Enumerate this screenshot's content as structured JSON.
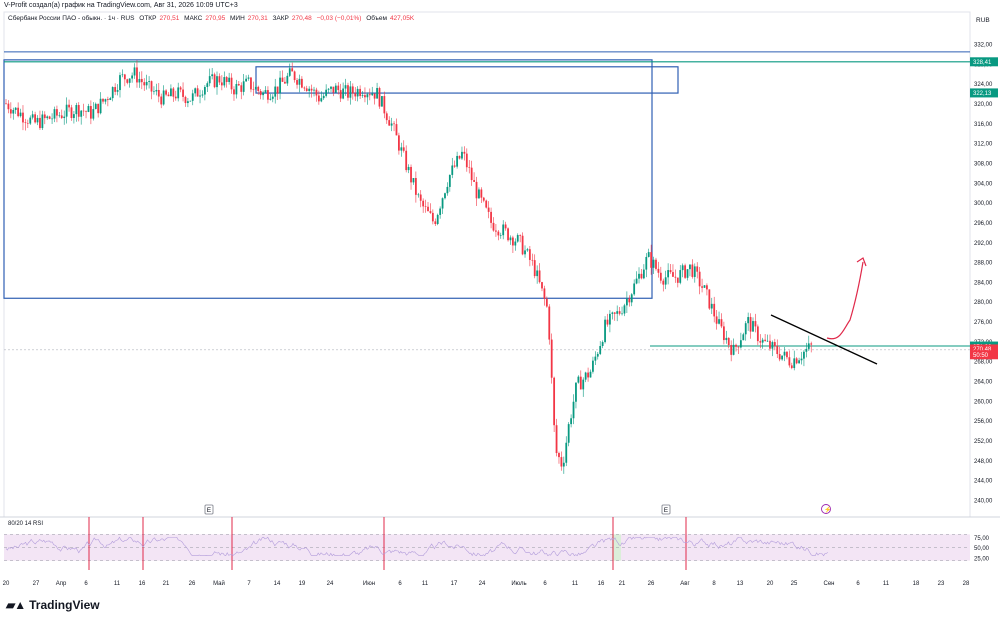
{
  "header": {
    "attribution": "V-Profit создал(а) график на TradingView.com, Авг 31, 2026 10:09 UTC+3"
  },
  "legend": {
    "symbol": "Сбербанк России ПАО - обыкн. · 1ч · RUS",
    "open_label": "ОТКР",
    "open_value": "270,51",
    "high_label": "МАКС",
    "high_value": "270,95",
    "low_label": "МИН",
    "low_value": "270,31",
    "close_label": "ЗАКР",
    "close_value": "270,48",
    "change": "−0,03 (−0,01%)",
    "volume_label": "Объем",
    "volume_value": "427,05K"
  },
  "currency": "RUB",
  "price_axis_ticks": [
    "332,00",
    "328,00",
    "324,00",
    "320,00",
    "316,00",
    "312,00",
    "308,00",
    "304,00",
    "300,00",
    "296,00",
    "292,00",
    "288,00",
    "284,00",
    "280,00",
    "276,00",
    "272,00",
    "268,00",
    "264,00",
    "260,00",
    "256,00",
    "252,00",
    "248,00",
    "244,00",
    "240,00"
  ],
  "price_badges": [
    {
      "value": "328,41",
      "price": 328.41,
      "color": "#089981"
    },
    {
      "value": "322,13",
      "price": 322.13,
      "color": "#089981"
    },
    {
      "value": "271,06",
      "price": 271.06,
      "color": "#089981"
    },
    {
      "value": "270,48",
      "price": 270.48,
      "color": "#f23645"
    },
    {
      "value": "50:50",
      "price": 269.3,
      "color": "#f23645"
    }
  ],
  "rsi_label": "80/20 14 RSI",
  "rsi_ticks": [
    {
      "label": "75,00",
      "value": 75
    },
    {
      "label": "50,00",
      "value": 50
    },
    {
      "label": "25,00",
      "value": 25
    }
  ],
  "time_axis": [
    "20",
    "27",
    "Апр",
    "6",
    "11",
    "16",
    "21",
    "26",
    "Май",
    "7",
    "14",
    "19",
    "24",
    "Июн",
    "6",
    "11",
    "17",
    "24",
    "Июль",
    "6",
    "11",
    "16",
    "21",
    "26",
    "Авг",
    "8",
    "13",
    "20",
    "25",
    "Сен",
    "6",
    "11",
    "18",
    "23",
    "28"
  ],
  "earnings_markers": [
    "E",
    "E"
  ],
  "brand": "TradingView",
  "chart_data": {
    "type": "line",
    "title": "Сбербанк России ПАО - обыкн. · 1ч · RUS",
    "ylim": [
      238,
      334
    ],
    "ylabel": "RUB",
    "x": [
      0,
      4,
      8,
      12,
      16,
      20,
      24,
      28,
      32,
      36,
      40,
      44,
      48,
      52,
      56,
      60,
      64,
      68,
      72,
      76,
      80,
      84,
      88,
      92,
      96,
      98,
      100,
      104,
      106
    ],
    "y": [
      320,
      318,
      316,
      318,
      320,
      321,
      319,
      320,
      324,
      327,
      326,
      322,
      321,
      325,
      323,
      324,
      327,
      324,
      320,
      322,
      323,
      324,
      322,
      318,
      310,
      302,
      294,
      298,
      294
    ],
    "series": [
      {
        "name": "Price",
        "points": [
          [
            0,
            320
          ],
          [
            2,
            318
          ],
          [
            4,
            316
          ],
          [
            6,
            317
          ],
          [
            8,
            318
          ],
          [
            10,
            319
          ],
          [
            12,
            318
          ],
          [
            14,
            321
          ],
          [
            16,
            325
          ],
          [
            18,
            326
          ],
          [
            20,
            323
          ],
          [
            22,
            321
          ],
          [
            24,
            322
          ],
          [
            26,
            321
          ],
          [
            28,
            324
          ],
          [
            30,
            325
          ],
          [
            32,
            323
          ],
          [
            34,
            324
          ],
          [
            36,
            322
          ],
          [
            38,
            323
          ],
          [
            40,
            326
          ],
          [
            42,
            324
          ],
          [
            44,
            321
          ],
          [
            46,
            323
          ],
          [
            48,
            322
          ],
          [
            50,
            323
          ],
          [
            52,
            322
          ],
          [
            54,
            316
          ],
          [
            56,
            308
          ],
          [
            58,
            300
          ],
          [
            60,
            296
          ],
          [
            62,
            305
          ],
          [
            64,
            310
          ],
          [
            66,
            302
          ],
          [
            68,
            296
          ],
          [
            70,
            294
          ],
          [
            72,
            292
          ],
          [
            74,
            287
          ],
          [
            76,
            278
          ],
          [
            77,
            250
          ],
          [
            78,
            247
          ],
          [
            79,
            256
          ],
          [
            80,
            263
          ],
          [
            82,
            266
          ],
          [
            84,
            275
          ],
          [
            86,
            278
          ],
          [
            88,
            283
          ],
          [
            90,
            289
          ],
          [
            92,
            285
          ],
          [
            94,
            285
          ],
          [
            96,
            287
          ],
          [
            98,
            282
          ],
          [
            100,
            275
          ],
          [
            102,
            270
          ],
          [
            104,
            276
          ],
          [
            106,
            272
          ],
          [
            108,
            270
          ],
          [
            110,
            268
          ],
          [
            112,
            270
          ],
          [
            113,
            271
          ]
        ]
      }
    ],
    "projection": [
      [
        113,
        271
      ],
      [
        116,
        273
      ],
      [
        118,
        276
      ],
      [
        120,
        289
      ]
    ],
    "resistance_lines": [
      328.41,
      322.13,
      271.06
    ],
    "rsi_overbought": 80,
    "rsi_oversold": 20
  }
}
